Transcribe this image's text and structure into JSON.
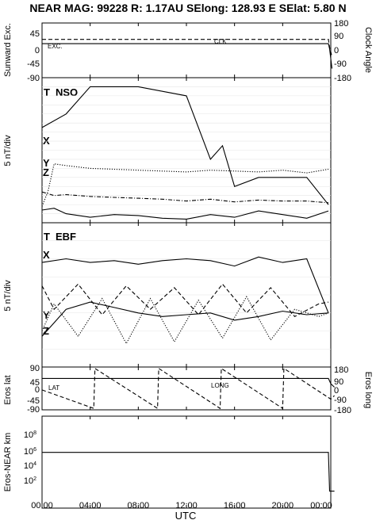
{
  "header": {
    "title": "NEAR MAG: 99228  R: 1.17AU  SElong: 128.93 E  SElat:   5.80 N"
  },
  "chart_data": [
    {
      "type": "line",
      "panel": "sunward-excursion-clock-angle",
      "ylabel_left": "Sunward Exc.",
      "ylabel_right": "Clock Angle",
      "yticks_left": [
        "45",
        "0",
        "-45",
        "-90"
      ],
      "yticks_right": [
        "180",
        "90",
        "0",
        "-90",
        "-180"
      ],
      "ylim_left": [
        -90,
        90
      ],
      "ylim_right": [
        -180,
        180
      ],
      "annotations": [
        "EXC.",
        "CLK"
      ],
      "series": [
        {
          "name": "EXC.",
          "style": "solid",
          "x_hours": [
            0,
            23.8,
            23.9,
            24.1
          ],
          "values": [
            22,
            22,
            5,
            -60
          ]
        },
        {
          "name": "CLK",
          "style": "dashed",
          "x_hours": [
            0,
            23.8,
            23.9,
            24.1
          ],
          "values": [
            72,
            72,
            20,
            -40
          ]
        }
      ]
    },
    {
      "type": "line",
      "panel": "NSO",
      "label": "NSO",
      "ylabel_left": "5 nT/div",
      "component_labels": [
        "T",
        "X",
        "Y",
        "Z"
      ],
      "series": [
        {
          "name": "T",
          "style": "solid",
          "x_hours": [
            0,
            2,
            4,
            6,
            8,
            10,
            12,
            14,
            15,
            16,
            18,
            20,
            22,
            23.8
          ],
          "values": [
            10.5,
            12,
            15,
            15,
            15,
            14.5,
            14,
            7,
            8.5,
            4,
            5,
            5,
            5,
            2
          ]
        },
        {
          "name": "X",
          "style": "dashdot",
          "x_hours": [
            0,
            1,
            2,
            4,
            6,
            8,
            10,
            12,
            14,
            16,
            18,
            20,
            22,
            23.8
          ],
          "values": [
            3.4,
            3.0,
            3.1,
            2.9,
            2.8,
            2.7,
            2.6,
            2.4,
            2.6,
            2.3,
            2.5,
            2.4,
            2.4,
            2.2
          ]
        },
        {
          "name": "Y",
          "style": "dotted",
          "x_hours": [
            0,
            0.5,
            1,
            2,
            4,
            6,
            8,
            10,
            12,
            14,
            16,
            18,
            20,
            22,
            23.8
          ],
          "values": [
            1.8,
            3.5,
            6.5,
            6.3,
            6.0,
            5.9,
            5.8,
            5.7,
            5.6,
            5.8,
            5.7,
            5.6,
            5.8,
            5.5,
            5.9
          ]
        },
        {
          "name": "Z",
          "style": "solid",
          "x_hours": [
            0,
            1,
            2,
            4,
            6,
            8,
            10,
            12,
            14,
            16,
            18,
            20,
            22,
            23.8
          ],
          "values": [
            1.4,
            1.6,
            1.0,
            0.6,
            0.9,
            0.8,
            0.5,
            0.4,
            0.9,
            0.6,
            1.3,
            0.9,
            0.5,
            1.3
          ]
        }
      ]
    },
    {
      "type": "line",
      "panel": "EBF",
      "label": "EBF",
      "ylabel_left": "5 nT/div",
      "component_labels": [
        "T",
        "X",
        "Y",
        "Z"
      ],
      "series": [
        {
          "name": "T",
          "style": "solid",
          "x_hours": [
            0,
            2,
            4,
            6,
            8,
            10,
            12,
            14,
            16,
            18,
            20,
            22,
            23.8
          ],
          "values": [
            5.8,
            6.0,
            5.8,
            5.9,
            5.7,
            5.9,
            6.0,
            5.9,
            5.6,
            6.1,
            5.8,
            6.0,
            3
          ]
        },
        {
          "name": "X",
          "style": "dashed",
          "x_hours": [
            0,
            1,
            3,
            5,
            7,
            9,
            11,
            13,
            15,
            17,
            19,
            21,
            23,
            23.8
          ],
          "values": [
            4.5,
            3.2,
            4.6,
            2.9,
            4.5,
            3.2,
            4.4,
            2.9,
            4.6,
            3.0,
            4.4,
            2.8,
            3.5,
            3.6
          ]
        },
        {
          "name": "Y",
          "style": "dotted",
          "x_hours": [
            0,
            1,
            3,
            5,
            7,
            9,
            11,
            13,
            15,
            17,
            19,
            21,
            23,
            23.8
          ],
          "values": [
            2.0,
            3.5,
            1.7,
            3.8,
            1.3,
            3.8,
            1.4,
            3.7,
            1.6,
            3.9,
            1.5,
            3.2,
            2.8,
            3.0
          ]
        },
        {
          "name": "Z",
          "style": "solid",
          "x_hours": [
            0,
            2,
            4,
            6,
            8,
            10,
            12,
            14,
            16,
            18,
            20,
            22,
            23.8
          ],
          "values": [
            1.7,
            3.2,
            3.6,
            3.3,
            3.0,
            2.8,
            2.9,
            3.0,
            2.6,
            2.8,
            3.1,
            2.9,
            3.0
          ]
        }
      ]
    },
    {
      "type": "line",
      "panel": "eros-lat-long",
      "ylabel_left": "Eros lat",
      "ylabel_right": "Eros long",
      "yticks_left": [
        "90",
        "45",
        "0",
        "-45",
        "-90"
      ],
      "yticks_right": [
        "180",
        "90",
        "0",
        "-90",
        "-180"
      ],
      "ylim_left": [
        -90,
        90
      ],
      "ylim_right": [
        -180,
        180
      ],
      "annotations": [
        "LAT",
        "LONG"
      ],
      "series": [
        {
          "name": "LAT",
          "style": "solid",
          "x_hours": [
            0,
            23.8,
            24,
            24.3
          ],
          "values": [
            42,
            42,
            20,
            5
          ]
        },
        {
          "name": "LONG",
          "style": "dashed",
          "x_hours": [
            0,
            4.3,
            4.4,
            9.6,
            9.7,
            14.8,
            14.9,
            20.0,
            20.1,
            24.0,
            24.3
          ],
          "values": [
            -13,
            -168,
            168,
            -168,
            168,
            -168,
            168,
            -168,
            168,
            -90,
            -60
          ]
        }
      ]
    },
    {
      "type": "line",
      "panel": "eros-near-distance",
      "ylabel_left": "Eros-NEAR km",
      "yscale": "log",
      "yticks_left": [
        {
          "mantissa": "10",
          "exponent": "8"
        },
        {
          "mantissa": "10",
          "exponent": "6"
        },
        {
          "mantissa": "10",
          "exponent": "4"
        },
        {
          "mantissa": "10",
          "exponent": "2"
        }
      ],
      "series": [
        {
          "name": "distance",
          "style": "solid",
          "x_hours": [
            0,
            23.8,
            23.9,
            24.3
          ],
          "values": [
            700000,
            700000,
            300,
            300
          ]
        }
      ]
    }
  ],
  "xaxis": {
    "label": "UTC",
    "ticks": [
      "00:00",
      "04:00",
      "08:00",
      "12:00",
      "16:00",
      "20:00",
      "00:00"
    ]
  }
}
